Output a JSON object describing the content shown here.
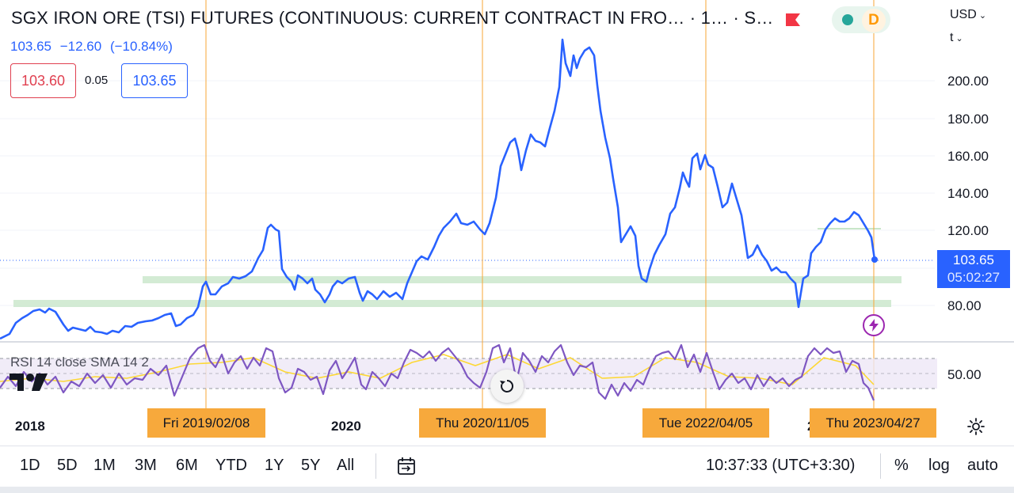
{
  "header": {
    "title": "SGX IRON ORE (TSI) FUTURES (CONTINUOUS: CURRENT CONTRACT IN FRO…  · 1…  · S…",
    "last_price": "103.65",
    "change": "−12.60",
    "change_pct": "(−10.84%)",
    "bid": "103.60",
    "spread": "0.05",
    "ask": "103.65",
    "currency": "USD",
    "unit": "t",
    "status_badge": "D"
  },
  "price_axis": {
    "ticks": [
      "200.00",
      "180.00",
      "160.00",
      "140.00",
      "120.00",
      "80.00"
    ],
    "current_price": "103.65",
    "countdown": "05:02:27"
  },
  "rsi": {
    "label": "RSI  14  close  SMA  14  2",
    "tick": "50.00"
  },
  "time_axis": {
    "years": [
      "2018",
      "2020",
      "2"
    ],
    "crosshair_tags": [
      "Fri 2019/02/08",
      "Thu 2020/11/05",
      "Tue 2022/04/05",
      "Thu 2023/04/27"
    ]
  },
  "toolbar": {
    "ranges": [
      "1D",
      "5D",
      "1M",
      "3M",
      "6M",
      "YTD",
      "1Y",
      "5Y",
      "All"
    ],
    "clock": "10:37:33 (UTC+3:30)",
    "percent": "%",
    "log": "log",
    "auto": "auto"
  },
  "colors": {
    "price_line": "#2962ff",
    "rsi_line": "#7e57c2",
    "rsi_sma": "#fdd835",
    "zone_fill": "#c8e6c9",
    "crosshair": "#f7a93c",
    "bid_red": "#e04050"
  },
  "icons": [
    "flag-icon",
    "status-dot-icon",
    "replay-icon",
    "lightning-icon",
    "gear-icon",
    "calendar-icon",
    "tradingview-logo"
  ]
}
